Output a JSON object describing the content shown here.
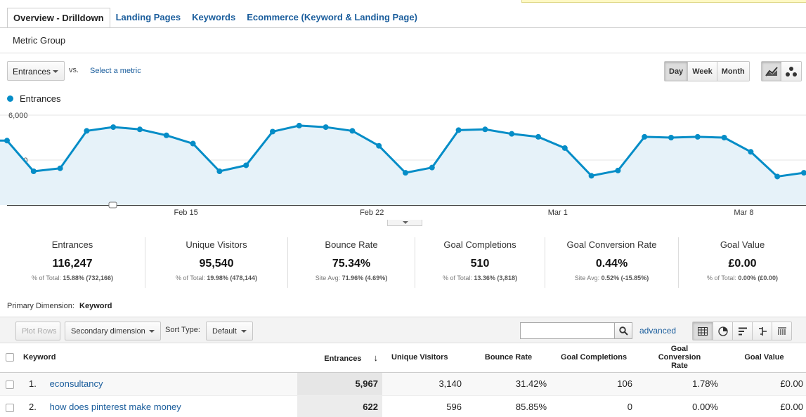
{
  "tabs": [
    "Overview - Drilldown",
    "Landing Pages",
    "Keywords",
    "Ecommerce (Keyword & Landing Page)"
  ],
  "metric_group_label": "Metric Group",
  "metric_selector": {
    "selected": "Entrances",
    "vs_label": "vs.",
    "select_metric_link": "Select a metric"
  },
  "period": {
    "options": [
      "Day",
      "Week",
      "Month"
    ],
    "active": "Day"
  },
  "chart_type_icons": [
    "line-chart-icon",
    "motion-chart-icon"
  ],
  "chart_data": {
    "type": "area",
    "series": [
      {
        "name": "Entrances",
        "color": "#058dc7",
        "values": [
          4300,
          2250,
          2450,
          4950,
          5200,
          5050,
          4650,
          4100,
          2250,
          2650,
          4900,
          5300,
          5200,
          4950,
          3950,
          2150,
          2500,
          5000,
          5050,
          4750,
          4550,
          3800,
          1950,
          2300,
          4550,
          4500,
          4550,
          4500,
          3550,
          1900,
          2150
        ]
      }
    ],
    "y_ticks": [
      "6,000",
      "3,000"
    ],
    "ylim": [
      0,
      6000
    ],
    "x_tick_labels": [
      "Feb 15",
      "Feb 22",
      "Mar 1",
      "Mar 8"
    ],
    "grid": true
  },
  "scorecards": [
    {
      "label": "Entrances",
      "value": "116,247",
      "sub_prefix": "% of Total:",
      "sub_value": "15.88% (732,166)"
    },
    {
      "label": "Unique Visitors",
      "value": "95,540",
      "sub_prefix": "% of Total:",
      "sub_value": "19.98% (478,144)"
    },
    {
      "label": "Bounce Rate",
      "value": "75.34%",
      "sub_prefix": "Site Avg:",
      "sub_value": "71.96% (4.69%)"
    },
    {
      "label": "Goal Completions",
      "value": "510",
      "sub_prefix": "% of Total:",
      "sub_value": "13.36% (3,818)"
    },
    {
      "label": "Goal Conversion Rate",
      "value": "0.44%",
      "sub_prefix": "Site Avg:",
      "sub_value": "0.52% (-15.85%)"
    },
    {
      "label": "Goal Value",
      "value": "£0.00",
      "sub_prefix": "% of Total:",
      "sub_value": "0.00% (£0.00)"
    }
  ],
  "primary_dimension": {
    "label": "Primary Dimension:",
    "value": "Keyword"
  },
  "toolbar": {
    "plot_rows": "Plot Rows",
    "secondary_dimension": "Secondary dimension",
    "sort_type_label": "Sort Type:",
    "sort_type_value": "Default",
    "search_value": "",
    "advanced": "advanced"
  },
  "view_icons": [
    "data-table-icon",
    "pie-chart-icon",
    "performance-icon",
    "comparison-icon",
    "term-cloud-icon"
  ],
  "table": {
    "headers": [
      "Keyword",
      "Entrances",
      "Unique Visitors",
      "Bounce Rate",
      "Goal Completions",
      "Goal Conversion Rate",
      "Goal Value"
    ],
    "rows": [
      {
        "index": "1.",
        "keyword": "econsultancy",
        "entrances": "5,967",
        "unique_visitors": "3,140",
        "bounce_rate": "31.42%",
        "goal_completions": "106",
        "goal_conversion_rate": "1.78%",
        "goal_value": "£0.00"
      },
      {
        "index": "2.",
        "keyword": "how does pinterest make money",
        "entrances": "622",
        "unique_visitors": "596",
        "bounce_rate": "85.85%",
        "goal_completions": "0",
        "goal_conversion_rate": "0.00%",
        "goal_value": "£0.00"
      }
    ]
  }
}
